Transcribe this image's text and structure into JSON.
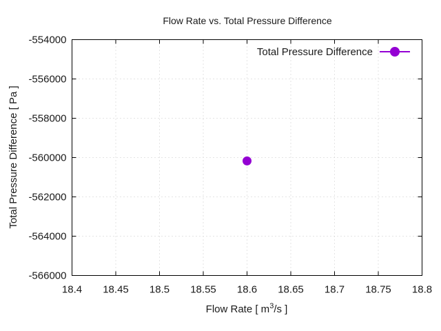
{
  "chart_data": {
    "type": "scatter",
    "title": "Flow Rate vs. Total Pressure Difference",
    "xlabel": "Flow Rate [ m³/s ]",
    "xlabel_parts": {
      "pre": "Flow Rate [ m",
      "sup": "3",
      "post": "/s ]"
    },
    "ylabel": "Total Pressure Difference [ Pa ]",
    "xlim": [
      18.4,
      18.8
    ],
    "ylim": [
      -566000,
      -554000
    ],
    "xticks": [
      18.4,
      18.45,
      18.5,
      18.55,
      18.6,
      18.65,
      18.7,
      18.75,
      18.8
    ],
    "xtick_labels": [
      "18.4",
      "18.45",
      "18.5",
      "18.55",
      "18.6",
      "18.65",
      "18.7",
      "18.75",
      "18.8"
    ],
    "yticks": [
      -566000,
      -564000,
      -562000,
      -560000,
      -558000,
      -556000,
      -554000
    ],
    "ytick_labels": [
      "-566000",
      "-564000",
      "-562000",
      "-560000",
      "-558000",
      "-556000",
      "-554000"
    ],
    "grid": true,
    "legend_position": "top-right",
    "series": [
      {
        "name": "Total Pressure Difference",
        "color": "#9400d3",
        "marker": "circle",
        "x": [
          18.6
        ],
        "y": [
          -560170
        ]
      }
    ]
  }
}
